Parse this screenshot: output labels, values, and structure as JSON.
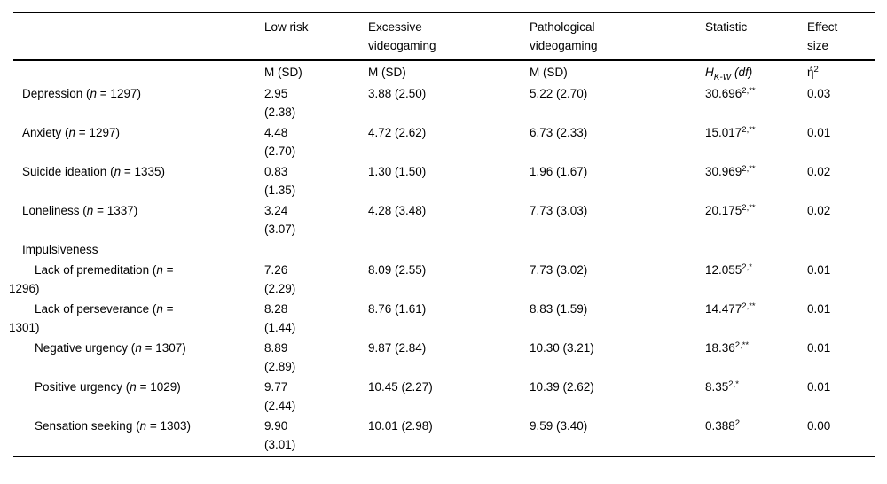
{
  "table": {
    "headers": {
      "low_risk": "Low risk",
      "excessive": "Excessive videogaming",
      "pathological": "Pathological videogaming",
      "statistic": "Statistic",
      "effect_size": "Effect size"
    },
    "subheaders": {
      "m_sd_low": "M (SD)",
      "m_sd_excessive": "M (SD)",
      "m_sd_pathological": "M (SD)",
      "statistic_symbol": "H",
      "statistic_subscript": "K-W",
      "statistic_df": " (df)",
      "effect_symbol": "ή",
      "effect_superscript": "2"
    },
    "rows": [
      {
        "type": "main",
        "label_pre": "Depression (",
        "label_var": "n",
        "label_rest": " = 1297)",
        "low_risk": "2.95 (2.38)",
        "excessive": "3.88 (2.50)",
        "pathological": "5.22 (2.70)",
        "statistic": "30.696",
        "statistic_sup": "2,**",
        "effect": "0.03"
      },
      {
        "type": "main",
        "label_pre": "Anxiety (",
        "label_var": "n",
        "label_rest": " = 1297)",
        "low_risk": "4.48 (2.70)",
        "excessive": "4.72 (2.62)",
        "pathological": "6.73 (2.33)",
        "statistic": "15.017",
        "statistic_sup": "2,**",
        "effect": "0.01"
      },
      {
        "type": "main",
        "label_pre": "Suicide ideation (",
        "label_var": "n",
        "label_rest": " = 1335)",
        "low_risk": "0.83 (1.35)",
        "excessive": "1.30 (1.50)",
        "pathological": "1.96 (1.67)",
        "statistic": "30.969",
        "statistic_sup": "2,**",
        "effect": "0.02"
      },
      {
        "type": "main",
        "label_pre": "Loneliness (",
        "label_var": "n",
        "label_rest": " = 1337)",
        "low_risk": "3.24 (3.07)",
        "excessive": "4.28 (3.48)",
        "pathological": "7.73 (3.03)",
        "statistic": "20.175",
        "statistic_sup": "2,**",
        "effect": "0.02"
      },
      {
        "type": "section",
        "label_pre": "Impulsiveness"
      },
      {
        "type": "sub",
        "label_pre": "Lack of premeditation (",
        "label_var": "n",
        "label_rest": " =",
        "label_line2": "1296)",
        "low_risk": "7.26 (2.29)",
        "excessive": "8.09 (2.55)",
        "pathological": "7.73 (3.02)",
        "statistic": "12.055",
        "statistic_sup": "2,*",
        "effect": "0.01"
      },
      {
        "type": "sub",
        "label_pre": "Lack of perseverance (",
        "label_var": "n",
        "label_rest": " =",
        "label_line2": "1301)",
        "low_risk": "8.28 (1.44)",
        "excessive": "8.76 (1.61)",
        "pathological": "8.83 (1.59)",
        "statistic": "14.477",
        "statistic_sup": "2,**",
        "effect": "0.01"
      },
      {
        "type": "sub",
        "label_pre": "Negative urgency (",
        "label_var": "n",
        "label_rest": " = 1307)",
        "low_risk": "8.89 (2.89)",
        "excessive": "9.87 (2.84)",
        "pathological": "10.30 (3.21)",
        "statistic": "18.36",
        "statistic_sup": "2,**",
        "effect": "0.01"
      },
      {
        "type": "sub",
        "label_pre": "Positive urgency (",
        "label_var": "n",
        "label_rest": " = 1029)",
        "low_risk": "9.77 (2.44)",
        "excessive": "10.45 (2.27)",
        "pathological": "10.39 (2.62)",
        "statistic": "8.35",
        "statistic_sup": "2,*",
        "effect": "0.01"
      },
      {
        "type": "sub",
        "label_pre": "Sensation seeking (",
        "label_var": "n",
        "label_rest": " = 1303)",
        "low_risk": "9.90 (3.01)",
        "excessive": "10.01 (2.98)",
        "pathological": "9.59 (3.40)",
        "statistic": "0.388",
        "statistic_sup": "2",
        "effect": "0.00"
      }
    ]
  }
}
